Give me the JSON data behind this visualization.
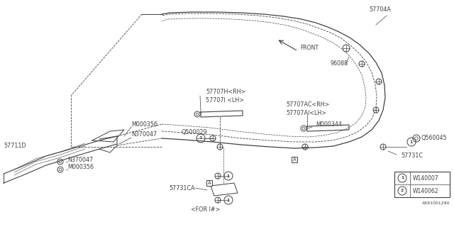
{
  "bg_color": "#ffffff",
  "line_color": "#404040",
  "text_color": "#404040",
  "legend_items": [
    {
      "symbol": "1",
      "code": "W140007"
    },
    {
      "symbol": "2",
      "code": "W140062"
    }
  ],
  "diagram_id": "A591001290",
  "figsize": [
    6.4,
    3.2
  ],
  "dpi": 100
}
